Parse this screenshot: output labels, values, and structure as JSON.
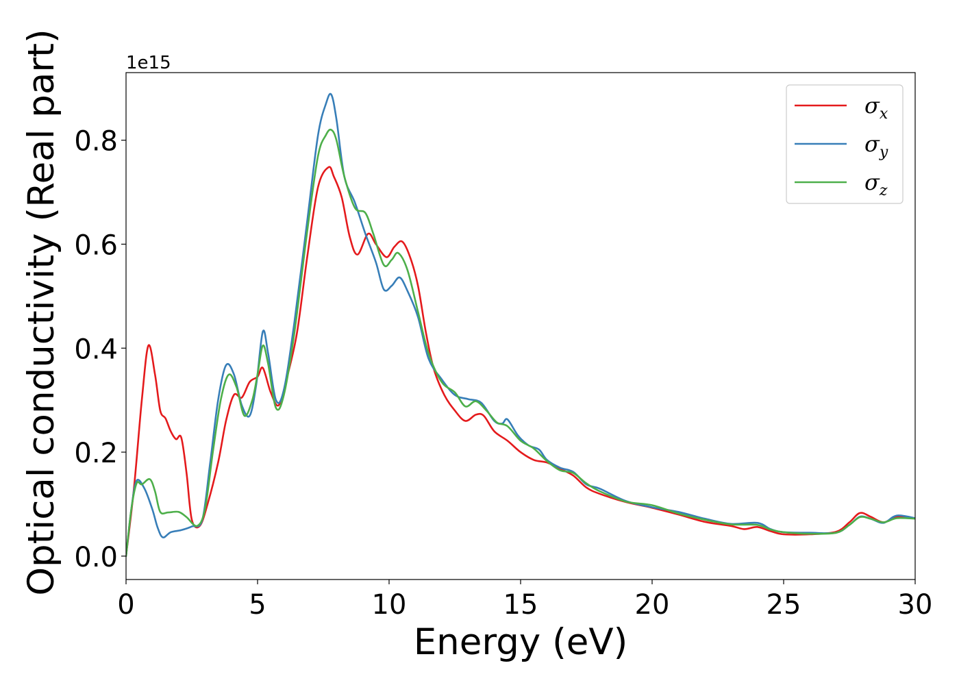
{
  "chart_data": {
    "type": "line",
    "title": "",
    "xlabel": "Energy (eV)",
    "ylabel": "Optical conductivity (Real part)",
    "y_offset_label": "1e15",
    "xlim": [
      0,
      30
    ],
    "ylim": [
      -0.045,
      0.93
    ],
    "xticks": [
      0,
      5,
      10,
      15,
      20,
      25,
      30
    ],
    "xtick_labels": [
      "0",
      "5",
      "10",
      "15",
      "20",
      "25",
      "30"
    ],
    "yticks": [
      0.0,
      0.2,
      0.4,
      0.6,
      0.8
    ],
    "ytick_labels": [
      "0.0",
      "0.2",
      "0.4",
      "0.6",
      "0.8"
    ],
    "grid": false,
    "legend_position": "top-right",
    "series": [
      {
        "name": "σx",
        "symbol": "σ",
        "subscript": "x",
        "color": "#e41a1c",
        "points": [
          [
            0,
            0.0
          ],
          [
            0.3,
            0.13
          ],
          [
            0.6,
            0.3
          ],
          [
            0.85,
            0.405
          ],
          [
            1.1,
            0.35
          ],
          [
            1.3,
            0.28
          ],
          [
            1.5,
            0.265
          ],
          [
            1.7,
            0.24
          ],
          [
            1.9,
            0.225
          ],
          [
            2.1,
            0.228
          ],
          [
            2.3,
            0.16
          ],
          [
            2.5,
            0.07
          ],
          [
            2.8,
            0.058
          ],
          [
            3.1,
            0.1
          ],
          [
            3.5,
            0.18
          ],
          [
            3.8,
            0.26
          ],
          [
            4.1,
            0.31
          ],
          [
            4.4,
            0.305
          ],
          [
            4.7,
            0.335
          ],
          [
            5.0,
            0.345
          ],
          [
            5.2,
            0.362
          ],
          [
            5.5,
            0.315
          ],
          [
            5.8,
            0.29
          ],
          [
            6.1,
            0.34
          ],
          [
            6.5,
            0.43
          ],
          [
            6.9,
            0.58
          ],
          [
            7.3,
            0.71
          ],
          [
            7.7,
            0.748
          ],
          [
            7.9,
            0.73
          ],
          [
            8.2,
            0.69
          ],
          [
            8.5,
            0.615
          ],
          [
            8.8,
            0.58
          ],
          [
            9.2,
            0.62
          ],
          [
            9.5,
            0.6
          ],
          [
            9.9,
            0.575
          ],
          [
            10.2,
            0.595
          ],
          [
            10.5,
            0.605
          ],
          [
            10.8,
            0.575
          ],
          [
            11.1,
            0.52
          ],
          [
            11.4,
            0.43
          ],
          [
            11.7,
            0.36
          ],
          [
            12.1,
            0.31
          ],
          [
            12.5,
            0.28
          ],
          [
            12.9,
            0.26
          ],
          [
            13.3,
            0.272
          ],
          [
            13.6,
            0.27
          ],
          [
            14.0,
            0.24
          ],
          [
            14.5,
            0.222
          ],
          [
            15.0,
            0.2
          ],
          [
            15.5,
            0.185
          ],
          [
            16.0,
            0.18
          ],
          [
            16.5,
            0.168
          ],
          [
            17.0,
            0.155
          ],
          [
            17.5,
            0.132
          ],
          [
            18.0,
            0.12
          ],
          [
            19.0,
            0.104
          ],
          [
            20.0,
            0.093
          ],
          [
            21.0,
            0.08
          ],
          [
            22.0,
            0.066
          ],
          [
            23.0,
            0.058
          ],
          [
            23.5,
            0.052
          ],
          [
            24.0,
            0.056
          ],
          [
            24.5,
            0.048
          ],
          [
            25.0,
            0.042
          ],
          [
            26.0,
            0.042
          ],
          [
            27.0,
            0.047
          ],
          [
            27.5,
            0.065
          ],
          [
            27.9,
            0.083
          ],
          [
            28.3,
            0.076
          ],
          [
            28.8,
            0.065
          ],
          [
            29.3,
            0.076
          ],
          [
            30.0,
            0.073
          ]
        ]
      },
      {
        "name": "σy",
        "symbol": "σ",
        "subscript": "y",
        "color": "#377eb8",
        "points": [
          [
            0,
            0.0
          ],
          [
            0.2,
            0.09
          ],
          [
            0.4,
            0.145
          ],
          [
            0.7,
            0.13
          ],
          [
            1.0,
            0.09
          ],
          [
            1.2,
            0.055
          ],
          [
            1.4,
            0.036
          ],
          [
            1.7,
            0.046
          ],
          [
            2.1,
            0.05
          ],
          [
            2.5,
            0.057
          ],
          [
            2.9,
            0.07
          ],
          [
            3.2,
            0.18
          ],
          [
            3.5,
            0.3
          ],
          [
            3.8,
            0.367
          ],
          [
            4.1,
            0.35
          ],
          [
            4.4,
            0.29
          ],
          [
            4.7,
            0.27
          ],
          [
            4.95,
            0.33
          ],
          [
            5.2,
            0.432
          ],
          [
            5.4,
            0.39
          ],
          [
            5.7,
            0.3
          ],
          [
            6.0,
            0.32
          ],
          [
            6.4,
            0.45
          ],
          [
            6.9,
            0.65
          ],
          [
            7.3,
            0.81
          ],
          [
            7.6,
            0.87
          ],
          [
            7.8,
            0.888
          ],
          [
            8.0,
            0.84
          ],
          [
            8.3,
            0.73
          ],
          [
            8.7,
            0.68
          ],
          [
            9.1,
            0.62
          ],
          [
            9.5,
            0.565
          ],
          [
            9.8,
            0.513
          ],
          [
            10.1,
            0.52
          ],
          [
            10.4,
            0.536
          ],
          [
            10.7,
            0.51
          ],
          [
            11.1,
            0.46
          ],
          [
            11.5,
            0.38
          ],
          [
            12.0,
            0.34
          ],
          [
            12.5,
            0.31
          ],
          [
            13.0,
            0.302
          ],
          [
            13.5,
            0.295
          ],
          [
            14.0,
            0.26
          ],
          [
            14.3,
            0.255
          ],
          [
            14.5,
            0.263
          ],
          [
            14.9,
            0.232
          ],
          [
            15.3,
            0.213
          ],
          [
            15.7,
            0.205
          ],
          [
            16.0,
            0.185
          ],
          [
            16.5,
            0.17
          ],
          [
            17.0,
            0.162
          ],
          [
            17.5,
            0.138
          ],
          [
            18.0,
            0.13
          ],
          [
            19.0,
            0.106
          ],
          [
            20.0,
            0.094
          ],
          [
            21.0,
            0.085
          ],
          [
            22.0,
            0.072
          ],
          [
            23.0,
            0.062
          ],
          [
            24.0,
            0.064
          ],
          [
            24.5,
            0.052
          ],
          [
            25.0,
            0.046
          ],
          [
            26.0,
            0.045
          ],
          [
            27.0,
            0.045
          ],
          [
            27.5,
            0.06
          ],
          [
            27.9,
            0.076
          ],
          [
            28.3,
            0.072
          ],
          [
            28.8,
            0.064
          ],
          [
            29.3,
            0.078
          ],
          [
            30.0,
            0.073
          ]
        ]
      },
      {
        "name": "σz",
        "symbol": "σ",
        "subscript": "z",
        "color": "#4daf4a",
        "points": [
          [
            0,
            0.0
          ],
          [
            0.2,
            0.09
          ],
          [
            0.4,
            0.14
          ],
          [
            0.6,
            0.138
          ],
          [
            0.9,
            0.148
          ],
          [
            1.1,
            0.125
          ],
          [
            1.3,
            0.085
          ],
          [
            1.6,
            0.084
          ],
          [
            2.0,
            0.085
          ],
          [
            2.3,
            0.075
          ],
          [
            2.7,
            0.058
          ],
          [
            3.0,
            0.09
          ],
          [
            3.3,
            0.2
          ],
          [
            3.6,
            0.3
          ],
          [
            3.9,
            0.349
          ],
          [
            4.2,
            0.325
          ],
          [
            4.5,
            0.27
          ],
          [
            4.8,
            0.3
          ],
          [
            5.0,
            0.35
          ],
          [
            5.2,
            0.405
          ],
          [
            5.4,
            0.37
          ],
          [
            5.7,
            0.285
          ],
          [
            6.0,
            0.31
          ],
          [
            6.4,
            0.43
          ],
          [
            6.9,
            0.63
          ],
          [
            7.3,
            0.77
          ],
          [
            7.6,
            0.81
          ],
          [
            7.8,
            0.82
          ],
          [
            8.0,
            0.8
          ],
          [
            8.3,
            0.73
          ],
          [
            8.7,
            0.67
          ],
          [
            9.1,
            0.66
          ],
          [
            9.4,
            0.62
          ],
          [
            9.8,
            0.56
          ],
          [
            10.1,
            0.57
          ],
          [
            10.35,
            0.583
          ],
          [
            10.7,
            0.55
          ],
          [
            11.1,
            0.47
          ],
          [
            11.5,
            0.39
          ],
          [
            12.0,
            0.335
          ],
          [
            12.5,
            0.315
          ],
          [
            12.9,
            0.288
          ],
          [
            13.3,
            0.298
          ],
          [
            13.7,
            0.28
          ],
          [
            14.1,
            0.257
          ],
          [
            14.5,
            0.25
          ],
          [
            15.0,
            0.222
          ],
          [
            15.5,
            0.207
          ],
          [
            16.0,
            0.183
          ],
          [
            16.5,
            0.165
          ],
          [
            17.0,
            0.16
          ],
          [
            17.5,
            0.14
          ],
          [
            18.0,
            0.125
          ],
          [
            19.0,
            0.105
          ],
          [
            20.0,
            0.098
          ],
          [
            21.0,
            0.082
          ],
          [
            22.0,
            0.07
          ],
          [
            23.0,
            0.061
          ],
          [
            24.0,
            0.06
          ],
          [
            24.5,
            0.051
          ],
          [
            25.0,
            0.046
          ],
          [
            26.0,
            0.043
          ],
          [
            27.0,
            0.045
          ],
          [
            27.5,
            0.06
          ],
          [
            27.9,
            0.075
          ],
          [
            28.3,
            0.072
          ],
          [
            28.8,
            0.065
          ],
          [
            29.3,
            0.073
          ],
          [
            30.0,
            0.072
          ]
        ]
      }
    ]
  }
}
